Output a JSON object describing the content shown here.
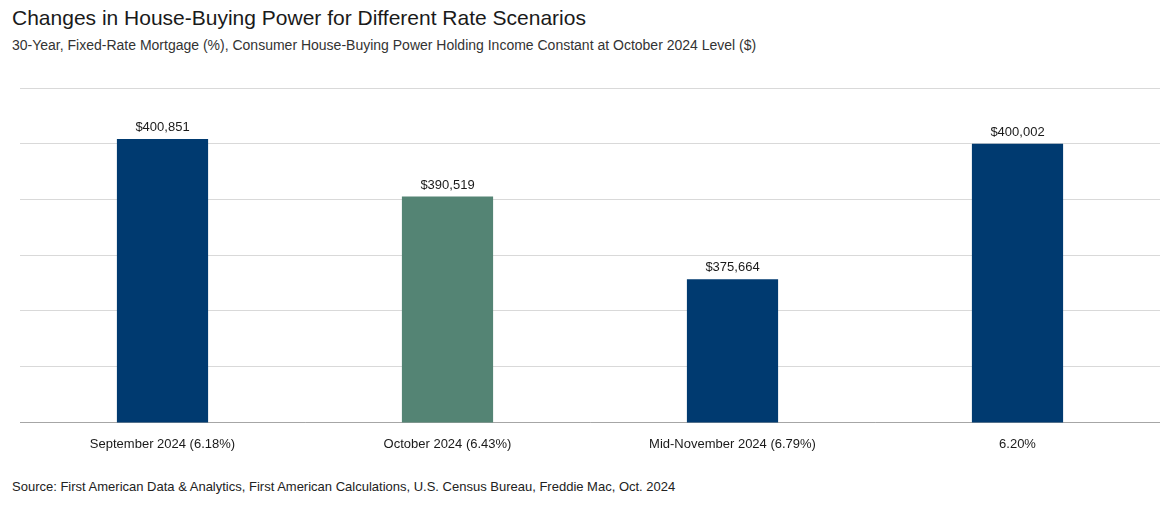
{
  "chart_data": {
    "type": "bar",
    "title": "Changes in House-Buying Power for Different Rate Scenarios",
    "subtitle": "30-Year, Fixed-Rate Mortgage (%), Consumer House-Buying Power Holding Income Constant at October 2024 Level ($)",
    "source": "Source: First American Data & Analytics, First American Calculations, U.S. Census Bureau, Freddie Mac, Oct. 2024",
    "categories": [
      "September 2024 (6.18%)",
      "October 2024 (6.43%)",
      "Mid-November 2024 (6.79%)",
      "6.20%"
    ],
    "values": [
      400851,
      390519,
      375664,
      400002
    ],
    "value_labels": [
      "$400,851",
      "$390,519",
      "$375,664",
      "$400,002"
    ],
    "colors": [
      "#003a70",
      "#548474",
      "#003a70",
      "#003a70"
    ],
    "ylim": [
      350000,
      410000
    ],
    "yticks": [
      350000,
      360000,
      370000,
      380000,
      390000,
      400000,
      410000
    ],
    "grid": true,
    "data_labels": true,
    "tick_labels": "x"
  }
}
